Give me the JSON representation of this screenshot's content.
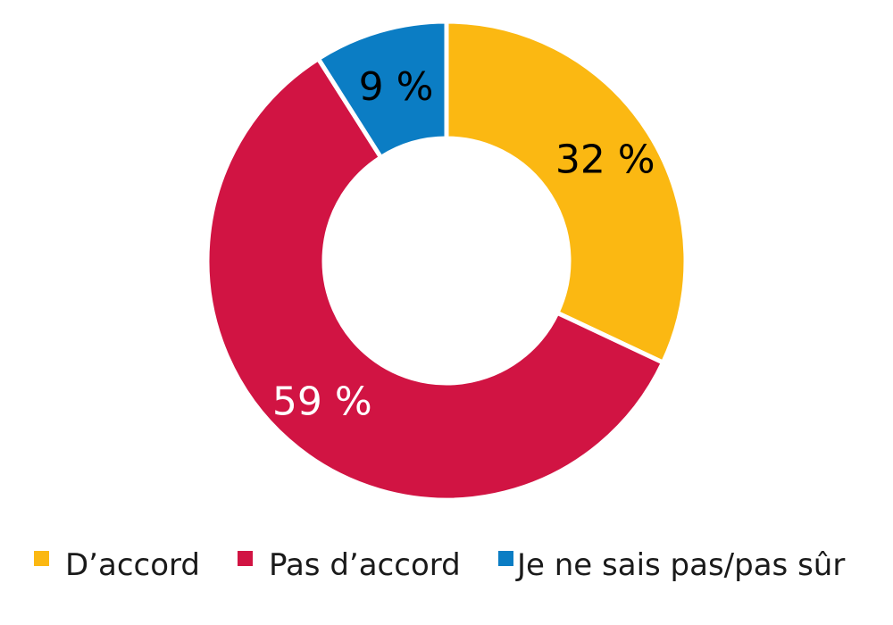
{
  "chart_data": {
    "type": "pie",
    "variant": "donut",
    "categories": [
      "D’accord",
      "Pas d’accord",
      "Je ne sais pas/pas sûr"
    ],
    "values": [
      32,
      59,
      9
    ],
    "labels": [
      "32 %",
      "59 %",
      "9 %"
    ],
    "colors": [
      "#FBB812",
      "#D11443",
      "#0B7DC4"
    ],
    "label_colors": [
      "#000000",
      "#ffffff",
      "#000000"
    ],
    "legend_position": "bottom",
    "title": "",
    "start": "top",
    "direction": "clockwise"
  },
  "legend": {
    "items": [
      {
        "label": "D’accord",
        "color": "#FBB812"
      },
      {
        "label": "Pas d’accord",
        "color": "#D11443"
      },
      {
        "label": "Je ne sais pas/pas sûr",
        "color": "#0B7DC4"
      }
    ]
  }
}
